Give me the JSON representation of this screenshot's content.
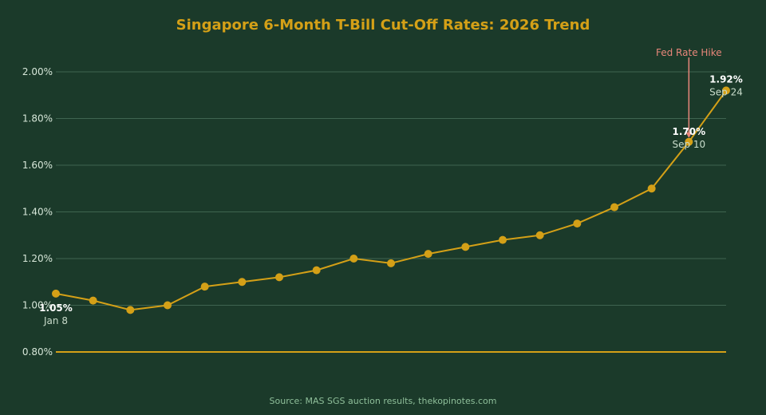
{
  "colors": {
    "background": "#1b3a2a",
    "accent": "#d4a017",
    "grid": "#3f6450",
    "tick_text": "#d6e6d8",
    "value_label": "#ffffff",
    "date_label": "#c9dccb",
    "source_text": "#8fbf9a",
    "annotation": "#e8867a"
  },
  "source": "Source: MAS SGS auction results, thekopinotes.com",
  "chart_data": {
    "type": "line",
    "title": "Singapore 6-Month T-Bill Cut-Off Rates: 2026 Trend",
    "xlabel": "",
    "ylabel": "",
    "ylim": [
      0.8,
      2.0
    ],
    "yticks": [
      0.8,
      1.0,
      1.2,
      1.4,
      1.6,
      1.8,
      2.0
    ],
    "ytick_labels": [
      "0.80%",
      "1.00%",
      "1.20%",
      "1.40%",
      "1.60%",
      "1.80%",
      "2.00%"
    ],
    "grid": true,
    "series": [
      {
        "values": [
          1.05,
          1.02,
          0.98,
          1.0,
          1.08,
          1.1,
          1.12,
          1.15,
          1.2,
          1.18,
          1.22,
          1.25,
          1.28,
          1.3,
          1.35,
          1.42,
          1.5,
          1.7,
          1.92
        ]
      }
    ],
    "point_labels": [
      {
        "index": 0,
        "value": "1.05%",
        "date": "Jan 8"
      },
      {
        "index": 17,
        "value": "1.70%",
        "date": "Sep 10"
      },
      {
        "index": 18,
        "value": "1.92%",
        "date": "Sep 24"
      }
    ],
    "annotation": {
      "index": 17,
      "text": "Fed Rate Hike"
    }
  }
}
